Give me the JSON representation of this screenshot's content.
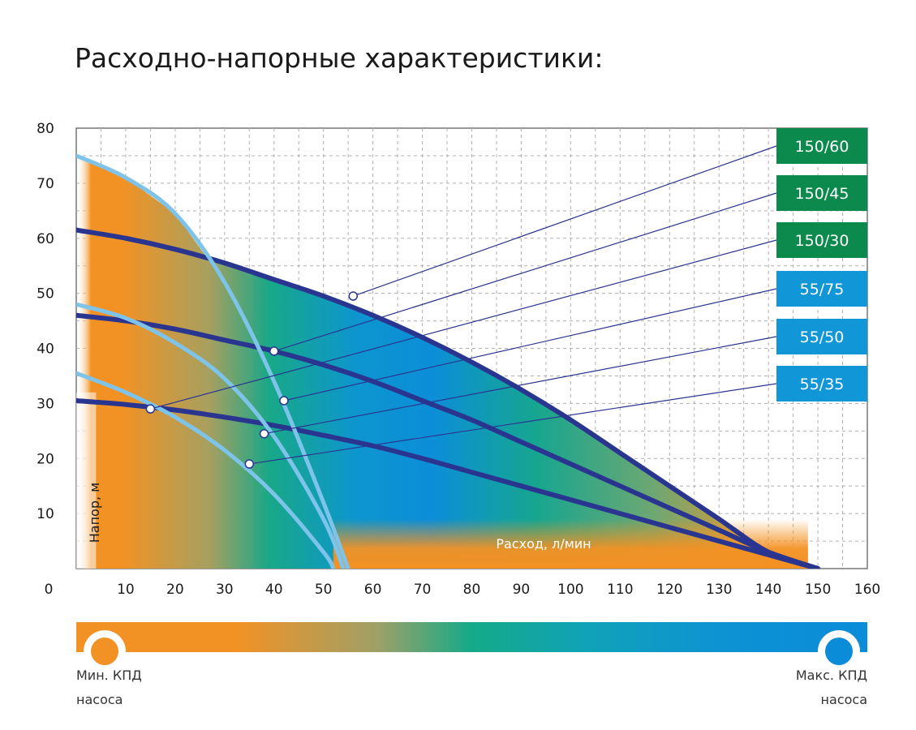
{
  "chart_data": {
    "type": "line",
    "title": "Расходно-напорные характеристики:",
    "xlabel": "Расход, л/мин",
    "ylabel": "Напор, м",
    "xlim": [
      0,
      160
    ],
    "ylim": [
      0,
      80
    ],
    "x_ticks": [
      "0",
      "10",
      "20",
      "30",
      "40",
      "50",
      "60",
      "70",
      "80",
      "90",
      "100",
      "110",
      "120",
      "130",
      "140",
      "150",
      "160"
    ],
    "y_ticks": [
      "10",
      "20",
      "30",
      "40",
      "50",
      "60",
      "70",
      "80"
    ],
    "grid": true,
    "series": [
      {
        "name": "150/60",
        "color": "#2a3590",
        "points": [
          [
            0,
            61.5
          ],
          [
            10,
            60
          ],
          [
            20,
            58
          ],
          [
            30,
            55.5
          ],
          [
            40,
            52.5
          ],
          [
            50,
            49.5
          ],
          [
            60,
            46
          ],
          [
            70,
            42
          ],
          [
            80,
            37.5
          ],
          [
            90,
            32.5
          ],
          [
            100,
            27
          ],
          [
            110,
            21
          ],
          [
            120,
            15
          ],
          [
            130,
            9
          ],
          [
            140,
            3
          ],
          [
            150,
            0
          ]
        ],
        "marker": [
          56,
          49.5
        ]
      },
      {
        "name": "150/45",
        "color": "#2a3590",
        "points": [
          [
            0,
            46
          ],
          [
            10,
            45
          ],
          [
            20,
            43.5
          ],
          [
            30,
            41.5
          ],
          [
            40,
            39.5
          ],
          [
            50,
            37
          ],
          [
            60,
            34
          ],
          [
            70,
            30.5
          ],
          [
            80,
            27
          ],
          [
            90,
            23
          ],
          [
            100,
            19
          ],
          [
            110,
            15
          ],
          [
            120,
            11
          ],
          [
            130,
            7
          ],
          [
            140,
            3
          ],
          [
            150,
            0
          ]
        ],
        "marker": [
          40,
          39.5
        ]
      },
      {
        "name": "150/30",
        "color": "#2a3590",
        "points": [
          [
            0,
            30.5
          ],
          [
            10,
            29.8
          ],
          [
            20,
            28.8
          ],
          [
            30,
            27.5
          ],
          [
            40,
            26
          ],
          [
            50,
            24.2
          ],
          [
            60,
            22.3
          ],
          [
            70,
            20
          ],
          [
            80,
            17.5
          ],
          [
            90,
            15
          ],
          [
            100,
            12.5
          ],
          [
            110,
            10
          ],
          [
            120,
            7.5
          ],
          [
            130,
            5
          ],
          [
            140,
            2.5
          ],
          [
            150,
            0
          ]
        ],
        "marker": [
          15,
          29
        ]
      },
      {
        "name": "55/75",
        "color": "#7ec4ea",
        "points": [
          [
            0,
            75
          ],
          [
            10,
            71
          ],
          [
            20,
            64.5
          ],
          [
            30,
            52
          ],
          [
            40,
            34
          ],
          [
            50,
            12
          ],
          [
            55,
            0
          ]
        ],
        "marker": [
          42,
          30.5
        ]
      },
      {
        "name": "55/50",
        "color": "#7ec4ea",
        "points": [
          [
            0,
            48
          ],
          [
            10,
            45.5
          ],
          [
            20,
            41
          ],
          [
            30,
            34.5
          ],
          [
            40,
            24
          ],
          [
            50,
            9
          ],
          [
            54,
            0
          ]
        ],
        "marker": [
          38,
          24.5
        ]
      },
      {
        "name": "55/35",
        "color": "#7ec4ea",
        "points": [
          [
            0,
            35.5
          ],
          [
            10,
            32
          ],
          [
            20,
            27.5
          ],
          [
            30,
            21.5
          ],
          [
            40,
            13.5
          ],
          [
            50,
            3
          ],
          [
            52,
            0
          ]
        ],
        "marker": [
          35,
          19
        ]
      }
    ],
    "badges": [
      {
        "label": "150/60",
        "color": "#0c8a4e"
      },
      {
        "label": "150/45",
        "color": "#0c8a4e"
      },
      {
        "label": "150/30",
        "color": "#0c8a4e"
      },
      {
        "label": "55/75",
        "color": "#1196d8"
      },
      {
        "label": "55/50",
        "color": "#1196d8"
      },
      {
        "label": "55/35",
        "color": "#1196d8"
      }
    ],
    "efficiency_gradient": [
      "#f39224",
      "#14aa88",
      "#0a8cd8"
    ]
  },
  "legend": {
    "min_label_line1": "Мин. КПД",
    "min_label_line2": "насоса",
    "max_label_line1": "Макс. КПД",
    "max_label_line2": "насоса"
  }
}
